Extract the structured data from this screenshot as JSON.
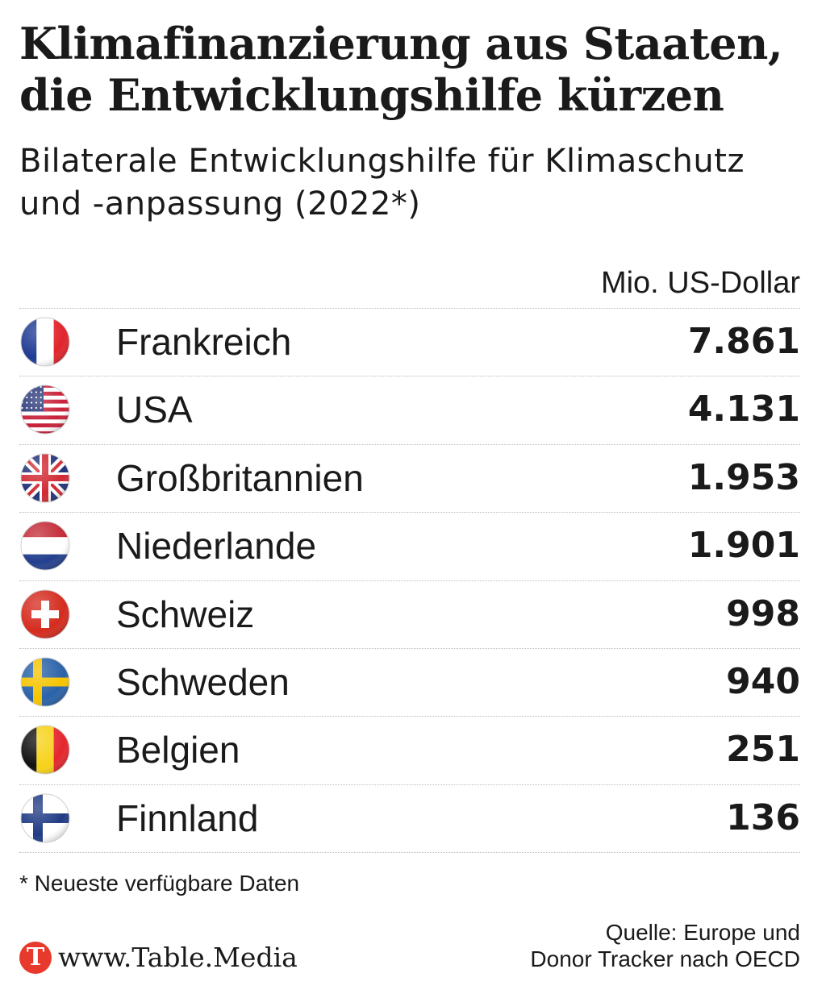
{
  "chart_data": {
    "type": "table",
    "title": "Klimafinanzierung aus Staaten, die Entwicklungshilfe kürzen",
    "subtitle": "Bilaterale Entwicklungshilfe für Klimaschutz und -anpassung (2022*)",
    "unit": "Mio. US-Dollar",
    "rows": [
      {
        "country": "Frankreich",
        "value_label": "7.861",
        "value": 7861,
        "flag": "france-flag"
      },
      {
        "country": "USA",
        "value_label": "4.131",
        "value": 4131,
        "flag": "usa-flag"
      },
      {
        "country": "Großbritannien",
        "value_label": "1.953",
        "value": 1953,
        "flag": "uk-flag"
      },
      {
        "country": "Niederlande",
        "value_label": "1.901",
        "value": 1901,
        "flag": "netherlands-flag"
      },
      {
        "country": "Schweiz",
        "value_label": "998",
        "value": 998,
        "flag": "switzerland-flag"
      },
      {
        "country": "Schweden",
        "value_label": "940",
        "value": 940,
        "flag": "sweden-flag"
      },
      {
        "country": "Belgien",
        "value_label": "251",
        "value": 251,
        "flag": "belgium-flag"
      },
      {
        "country": "Finnland",
        "value_label": "136",
        "value": 136,
        "flag": "finland-flag"
      }
    ],
    "footnote": "* Neueste verfügbare Daten",
    "source_line1": "Quelle: Europe und",
    "source_line2": "Donor Tracker nach OECD"
  },
  "branding": {
    "logo_letter": "T",
    "site": "www.Table.Media",
    "accent": "#e8392d"
  }
}
